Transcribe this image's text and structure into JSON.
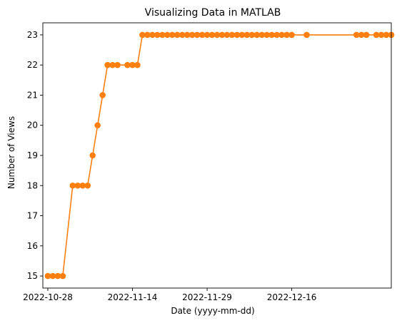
{
  "chart_data": {
    "type": "line",
    "title": "Visualizing Data in MATLAB",
    "xlabel": "Date (yyyy-mm-dd)",
    "ylabel": "Number of Views",
    "x_tick_labels": [
      "2022-10-28",
      "2022-11-14",
      "2022-11-29",
      "2022-12-16"
    ],
    "x_ticks": [
      "2022-10-28",
      "2022-11-14",
      "2022-11-29",
      "2022-12-16"
    ],
    "y_ticks": [
      15,
      16,
      17,
      18,
      19,
      20,
      21,
      22,
      23
    ],
    "xlim": [
      "2022-10-27",
      "2023-01-05"
    ],
    "ylim": [
      14.6,
      23.4
    ],
    "grid": false,
    "colors": {
      "series": "#ff7f0e"
    },
    "series": [
      {
        "x": [
          "2022-10-28",
          "2022-10-29",
          "2022-10-30",
          "2022-10-31",
          "2022-11-02",
          "2022-11-03",
          "2022-11-04",
          "2022-11-05",
          "2022-11-06",
          "2022-11-07",
          "2022-11-08",
          "2022-11-09",
          "2022-11-10",
          "2022-11-11",
          "2022-11-13",
          "2022-11-14",
          "2022-11-15",
          "2022-11-16",
          "2022-11-17",
          "2022-11-18",
          "2022-11-19",
          "2022-11-20",
          "2022-11-21",
          "2022-11-22",
          "2022-11-23",
          "2022-11-24",
          "2022-11-25",
          "2022-11-26",
          "2022-11-27",
          "2022-11-28",
          "2022-11-29",
          "2022-11-30",
          "2022-12-01",
          "2022-12-02",
          "2022-12-03",
          "2022-12-04",
          "2022-12-05",
          "2022-12-06",
          "2022-12-07",
          "2022-12-08",
          "2022-12-09",
          "2022-12-10",
          "2022-12-11",
          "2022-12-12",
          "2022-12-13",
          "2022-12-14",
          "2022-12-15",
          "2022-12-16",
          "2022-12-19",
          "2022-12-29",
          "2022-12-30",
          "2022-12-31",
          "2023-01-02",
          "2023-01-03",
          "2023-01-04",
          "2023-01-05"
        ],
        "values": [
          15,
          15,
          15,
          15,
          18,
          18,
          18,
          18,
          19,
          20,
          21,
          22,
          22,
          22,
          22,
          22,
          22,
          23,
          23,
          23,
          23,
          23,
          23,
          23,
          23,
          23,
          23,
          23,
          23,
          23,
          23,
          23,
          23,
          23,
          23,
          23,
          23,
          23,
          23,
          23,
          23,
          23,
          23,
          23,
          23,
          23,
          23,
          23,
          23,
          23,
          23,
          23,
          23,
          23,
          23,
          23
        ]
      }
    ]
  }
}
